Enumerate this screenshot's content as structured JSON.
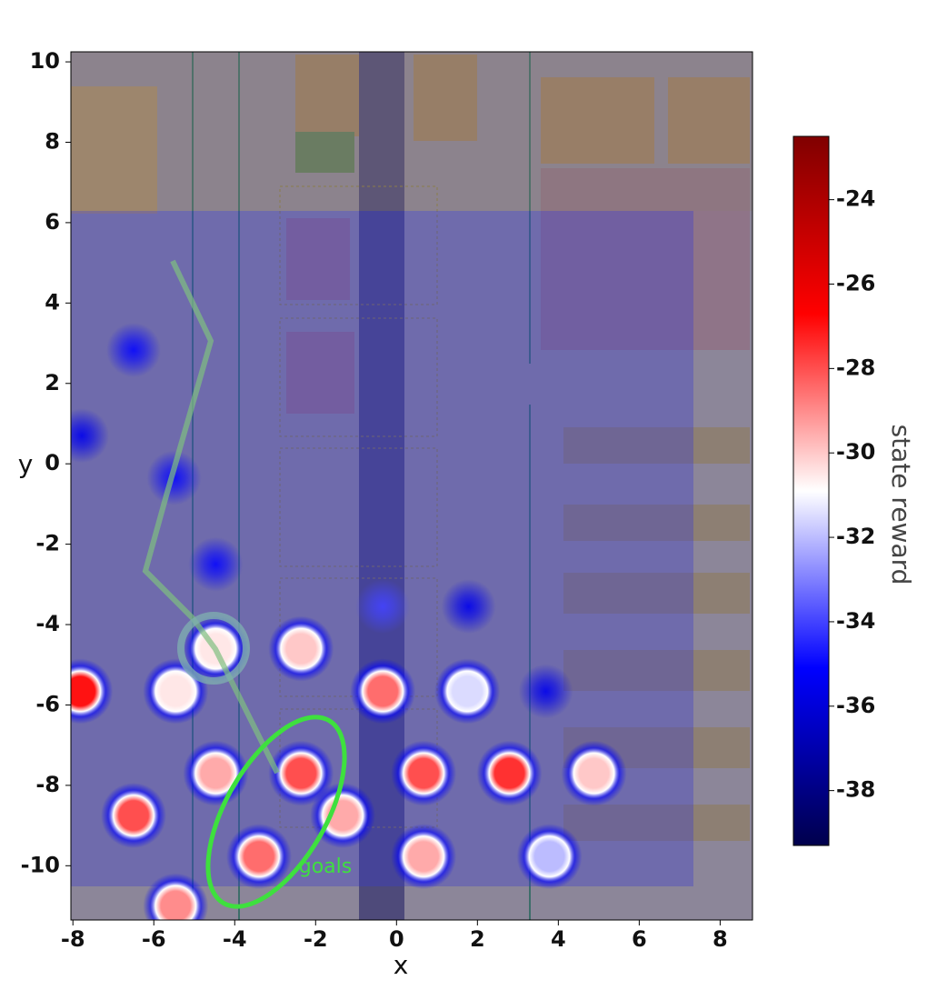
{
  "chart_data": {
    "type": "heatmap",
    "xlabel": "x",
    "ylabel": "y",
    "colorbar_label": "state reward",
    "annotation": "goals",
    "colormap": "seismic",
    "xlim": [
      -8.05,
      8.8
    ],
    "ylim": [
      -11.35,
      10.25
    ],
    "xticks": [
      -8,
      -6,
      -4,
      -2,
      0,
      2,
      4,
      6,
      8
    ],
    "yticks": [
      -10,
      -8,
      -6,
      -4,
      -2,
      0,
      2,
      4,
      6,
      8,
      10
    ],
    "clim": [
      -39.3,
      -22.5
    ],
    "cticks": [
      -38,
      -36,
      -34,
      -32,
      -30,
      -28,
      -26,
      -24
    ],
    "x": [
      -7.82,
      -6.5,
      -5.46,
      -5.46,
      -4.47,
      -4.47,
      -2.36,
      -2.36,
      -1.33,
      -3.4,
      -0.34,
      -0.34,
      0.67,
      0.67,
      1.75,
      2.79,
      4.88,
      3.78,
      -6.5,
      -4.47,
      -5.5,
      -7.78,
      1.78,
      3.69
    ],
    "y": [
      -5.66,
      -8.75,
      -11.0,
      -5.66,
      -4.6,
      -7.7,
      -4.6,
      -7.7,
      -8.75,
      -9.77,
      -5.66,
      -3.55,
      -7.7,
      -9.77,
      -5.66,
      -7.7,
      -7.7,
      -9.77,
      2.83,
      -2.5,
      -0.35,
      0.7,
      -3.55,
      -5.66
    ],
    "values": [
      -27,
      -28,
      -29,
      -30.5,
      -30.5,
      -29.5,
      -30,
      -28,
      -29.5,
      -28.5,
      -28.5,
      -34,
      -28,
      -29.5,
      -31.5,
      -27.5,
      -30,
      -32,
      -35,
      -35,
      -35,
      -35.5,
      -35.5,
      -35.5
    ]
  }
}
